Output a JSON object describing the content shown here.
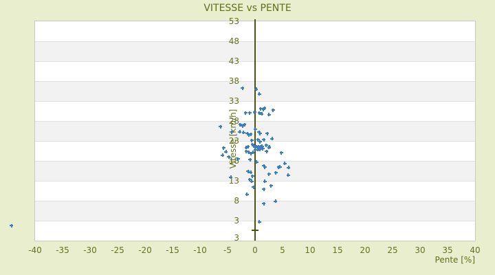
{
  "page": {
    "background_color": "#e9efce"
  },
  "chart_data": {
    "type": "scatter",
    "title": "VITESSE vs PENTE",
    "xlabel": "Pente [%]",
    "ylabel": "Vitesse [km/h]",
    "xlim": [
      -40,
      40
    ],
    "ylim": [
      -2,
      53
    ],
    "x_ticks": [
      -40,
      -35,
      -30,
      -25,
      -20,
      -15,
      -10,
      -5,
      0,
      5,
      10,
      15,
      20,
      25,
      30,
      35,
      40
    ],
    "y_ticks": [
      53,
      48,
      43,
      38,
      33,
      28,
      23,
      18,
      13,
      8,
      3
    ],
    "y_tick_step": 5,
    "y_axis_bottom_label": "3",
    "legend": "none",
    "grid": "horizontal-bands-alternating",
    "zero_line_x": 0,
    "origin_tick_y": 0,
    "marker": {
      "shape": "plus",
      "size": 5,
      "color": "#3c7dbf"
    },
    "colors": {
      "background": "#e9efce",
      "text": "#5f6e17",
      "tick_text": "#66701f",
      "zero_line": "#4a530f",
      "marker": "#3c7dbf",
      "band_alt": "#f2f2f2",
      "band_main": "#ffffff",
      "gridline": "#e0e0e0",
      "plot_border": "#c9c9c9"
    },
    "points": [
      [
        -2.3,
        36.2
      ],
      [
        0.2,
        36.0
      ],
      [
        0.8,
        34.8
      ],
      [
        1.7,
        31.2
      ],
      [
        1.0,
        31.1
      ],
      [
        1.5,
        30.9
      ],
      [
        3.3,
        30.7
      ],
      [
        0.8,
        30.0
      ],
      [
        1.2,
        29.8
      ],
      [
        2.5,
        29.6
      ],
      [
        -0.1,
        30.2
      ],
      [
        -1.7,
        30.0
      ],
      [
        -1.0,
        30.0
      ],
      [
        0.0,
        25.9
      ],
      [
        -6.3,
        26.6
      ],
      [
        -2.7,
        27.1
      ],
      [
        -2.3,
        26.8
      ],
      [
        -1.9,
        27.1
      ],
      [
        -2.8,
        25.3
      ],
      [
        -2.1,
        25.1
      ],
      [
        -1.4,
        24.9
      ],
      [
        -0.8,
        24.7
      ],
      [
        -1.1,
        24.5
      ],
      [
        0.7,
        25.2
      ],
      [
        0.9,
        24.9
      ],
      [
        2.2,
        24.9
      ],
      [
        -4.2,
        25.2
      ],
      [
        3.1,
        23.6
      ],
      [
        -0.6,
        23.1
      ],
      [
        0.5,
        23.3
      ],
      [
        0.9,
        22.8
      ],
      [
        1.6,
        23.3
      ],
      [
        1.3,
        21.7
      ],
      [
        2.0,
        21.9
      ],
      [
        -0.5,
        22.1
      ],
      [
        -0.3,
        21.8
      ],
      [
        0.0,
        21.6
      ],
      [
        0.3,
        21.5
      ],
      [
        0.6,
        21.6
      ],
      [
        1.0,
        21.5
      ],
      [
        1.4,
        21.1
      ],
      [
        0.9,
        20.9
      ],
      [
        0.5,
        20.8
      ],
      [
        0.0,
        20.8
      ],
      [
        -1.3,
        21.6
      ],
      [
        -1.6,
        21.3
      ],
      [
        -5.7,
        21.2
      ],
      [
        -5.3,
        20.3
      ],
      [
        2.6,
        21.5
      ],
      [
        4.8,
        20.0
      ],
      [
        2.1,
        20.4
      ],
      [
        2.5,
        21.3
      ],
      [
        -1.6,
        20.4
      ],
      [
        -1.1,
        20.1
      ],
      [
        -0.8,
        19.9
      ],
      [
        -0.4,
        20.1
      ],
      [
        -5.9,
        19.4
      ],
      [
        -4.8,
        19.0
      ],
      [
        -3.1,
        18.5
      ],
      [
        -0.9,
        18.3
      ],
      [
        0.3,
        17.7
      ],
      [
        1.6,
        16.8
      ],
      [
        4.5,
        16.5
      ],
      [
        5.4,
        17.4
      ],
      [
        6.1,
        16.3
      ],
      [
        -1.3,
        15.4
      ],
      [
        -0.8,
        15.1
      ],
      [
        -0.5,
        14.2
      ],
      [
        1.8,
        16.4
      ],
      [
        2.5,
        14.7
      ],
      [
        3.8,
        15.0
      ],
      [
        4.3,
        16.4
      ],
      [
        6.0,
        14.4
      ],
      [
        -4.4,
        13.9
      ],
      [
        -1.0,
        13.3
      ],
      [
        -0.6,
        12.9
      ],
      [
        -0.3,
        11.4
      ],
      [
        1.8,
        12.9
      ],
      [
        2.9,
        11.8
      ],
      [
        1.6,
        10.9
      ],
      [
        -1.5,
        9.6
      ],
      [
        3.7,
        7.9
      ],
      [
        1.6,
        7.3
      ],
      [
        0.8,
        2.7
      ],
      [
        -44.3,
        1.8
      ]
    ]
  }
}
